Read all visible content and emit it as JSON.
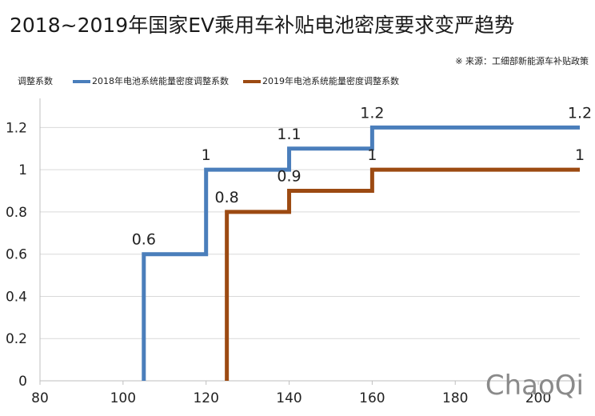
{
  "title": "2018~2019年国家EV乘用车补贴电池密度要求变严趋势",
  "source": "※ 来源：工细部新能源车补贴政策",
  "watermark": "ChaoQi",
  "chart_data": {
    "type": "line",
    "ylabel": "调整系数",
    "xlim": [
      80,
      210
    ],
    "ylim": [
      0,
      1.3
    ],
    "x_ticks": [
      "80",
      "100",
      "120",
      "140",
      "160",
      "180",
      "200"
    ],
    "y_ticks": [
      "0",
      "0.2",
      "0.4",
      "0.6",
      "0.8",
      "1",
      "1.2"
    ],
    "grid": "horizontal",
    "series": [
      {
        "name": "2018年电池系统能量密度调整系数",
        "color": "#4a7ebb",
        "points": [
          [
            105,
            0
          ],
          [
            105,
            0.6
          ],
          [
            120,
            0.6
          ],
          [
            120,
            1
          ],
          [
            140,
            1
          ],
          [
            140,
            1.1
          ],
          [
            160,
            1.1
          ],
          [
            160,
            1.2
          ],
          [
            210,
            1.2
          ]
        ],
        "labels": [
          {
            "x": 105,
            "y": 0.6,
            "text": "0.6"
          },
          {
            "x": 120,
            "y": 1,
            "text": "1"
          },
          {
            "x": 140,
            "y": 1.1,
            "text": "1.1"
          },
          {
            "x": 160,
            "y": 1.2,
            "text": "1.2"
          },
          {
            "x": 210,
            "y": 1.2,
            "text": "1.2"
          }
        ]
      },
      {
        "name": "2019年电池系统能量密度调整系数",
        "color": "#9c4a12",
        "points": [
          [
            125,
            0
          ],
          [
            125,
            0.8
          ],
          [
            140,
            0.8
          ],
          [
            140,
            0.9
          ],
          [
            160,
            0.9
          ],
          [
            160,
            1
          ],
          [
            210,
            1
          ]
        ],
        "labels": [
          {
            "x": 125,
            "y": 0.8,
            "text": "0.8"
          },
          {
            "x": 140,
            "y": 0.9,
            "text": "0.9"
          },
          {
            "x": 160,
            "y": 1,
            "text": "1"
          },
          {
            "x": 210,
            "y": 1,
            "text": "1"
          }
        ]
      }
    ]
  }
}
